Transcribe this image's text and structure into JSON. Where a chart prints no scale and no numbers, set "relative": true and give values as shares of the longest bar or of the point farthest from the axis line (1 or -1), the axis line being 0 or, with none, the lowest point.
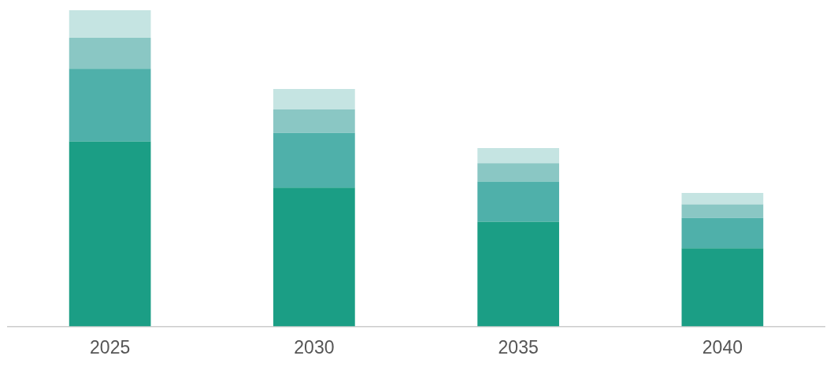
{
  "chart_data": {
    "type": "bar",
    "relative": true,
    "stacked": true,
    "legend": false,
    "grid": false,
    "categories": [
      "2025",
      "2030",
      "2035",
      "2040"
    ],
    "series": [
      {
        "color": "#1b9e85",
        "values": [
          0.585,
          0.439,
          0.331,
          0.247
        ]
      },
      {
        "color": "#4fb0aa",
        "values": [
          0.23,
          0.173,
          0.127,
          0.096
        ]
      },
      {
        "color": "#8ac7c4",
        "values": [
          0.098,
          0.074,
          0.058,
          0.043
        ]
      },
      {
        "color": "#c5e4e2",
        "values": [
          0.087,
          0.065,
          0.048,
          0.036
        ]
      }
    ]
  }
}
